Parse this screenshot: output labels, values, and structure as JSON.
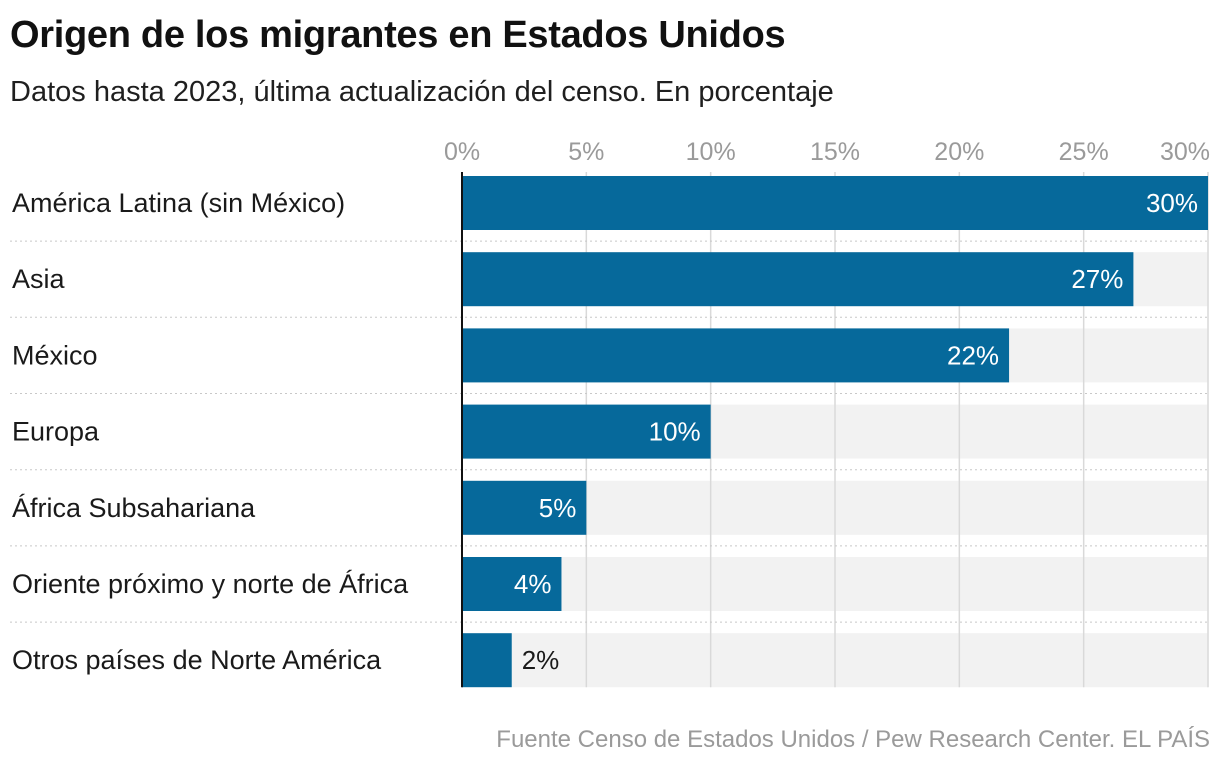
{
  "title": "Origen de los migrantes en Estados Unidos",
  "subtitle": "Datos hasta 2023, última actualización del censo. En porcentaje",
  "source": "Fuente Censo de Estados Unidos / Pew Research Center. EL PAÍS",
  "colors": {
    "bar": "#06699b",
    "track": "#f2f2f2",
    "grid": "#d9d9d9",
    "tick_text": "#9a9a9a",
    "label_text": "#1a1a1a",
    "value_inside": "#ffffff",
    "value_outside": "#1a1a1a"
  },
  "chart_data": {
    "type": "bar",
    "orientation": "horizontal",
    "title": "Origen de los migrantes en Estados Unidos",
    "xlabel": "",
    "ylabel": "",
    "xlim": [
      0,
      30
    ],
    "ticks": [
      0,
      5,
      10,
      15,
      20,
      25,
      30
    ],
    "tick_labels": [
      "0%",
      "5%",
      "10%",
      "15%",
      "20%",
      "25%",
      "30%"
    ],
    "categories": [
      "América Latina (sin México)",
      "Asia",
      "México",
      "Europa",
      "África Subsahariana",
      "Oriente próximo y norte de África",
      "Otros países de Norte América"
    ],
    "values": [
      30,
      27,
      22,
      10,
      5,
      4,
      2
    ],
    "value_labels": [
      "30%",
      "27%",
      "22%",
      "10%",
      "5%",
      "4%",
      "2%"
    ],
    "grid": true
  }
}
